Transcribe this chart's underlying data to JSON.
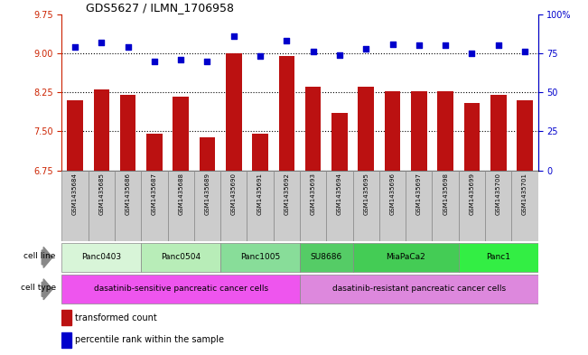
{
  "title": "GDS5627 / ILMN_1706958",
  "samples": [
    "GSM1435684",
    "GSM1435685",
    "GSM1435686",
    "GSM1435687",
    "GSM1435688",
    "GSM1435689",
    "GSM1435690",
    "GSM1435691",
    "GSM1435692",
    "GSM1435693",
    "GSM1435694",
    "GSM1435695",
    "GSM1435696",
    "GSM1435697",
    "GSM1435698",
    "GSM1435699",
    "GSM1435700",
    "GSM1435701"
  ],
  "transformed_count": [
    8.1,
    8.3,
    8.2,
    7.45,
    8.17,
    7.38,
    9.0,
    7.45,
    8.95,
    8.35,
    7.85,
    8.35,
    8.27,
    8.27,
    8.27,
    8.05,
    8.2,
    8.1
  ],
  "percentile_rank": [
    79,
    82,
    79,
    70,
    71,
    70,
    86,
    73,
    83,
    76,
    74,
    78,
    81,
    80,
    80,
    75,
    80,
    76
  ],
  "ylim_left": [
    6.75,
    9.75
  ],
  "ylim_right": [
    0,
    100
  ],
  "yticks_left": [
    6.75,
    7.5,
    8.25,
    9.0,
    9.75
  ],
  "yticks_right": [
    0,
    25,
    50,
    75,
    100
  ],
  "ytick_labels_right": [
    "0",
    "25",
    "50",
    "75",
    "100%"
  ],
  "cell_lines": [
    {
      "label": "Panc0403",
      "start": 0,
      "end": 3,
      "color": "#d8f5d8"
    },
    {
      "label": "Panc0504",
      "start": 3,
      "end": 6,
      "color": "#b8edb8"
    },
    {
      "label": "Panc1005",
      "start": 6,
      "end": 9,
      "color": "#88dd99"
    },
    {
      "label": "SU8686",
      "start": 9,
      "end": 11,
      "color": "#55cc66"
    },
    {
      "label": "MiaPaCa2",
      "start": 11,
      "end": 15,
      "color": "#44cc55"
    },
    {
      "label": "Panc1",
      "start": 15,
      "end": 18,
      "color": "#33ee44"
    }
  ],
  "cell_types": [
    {
      "label": "dasatinib-sensitive pancreatic cancer cells",
      "start": 0,
      "end": 9,
      "color": "#ee55ee"
    },
    {
      "label": "dasatinib-resistant pancreatic cancer cells",
      "start": 9,
      "end": 18,
      "color": "#dd88dd"
    }
  ],
  "bar_color": "#bb1111",
  "dot_color": "#0000cc",
  "left_axis_color": "#cc2200",
  "right_axis_color": "#0000cc",
  "sample_label_bg": "#cccccc",
  "background_color": "#ffffff"
}
